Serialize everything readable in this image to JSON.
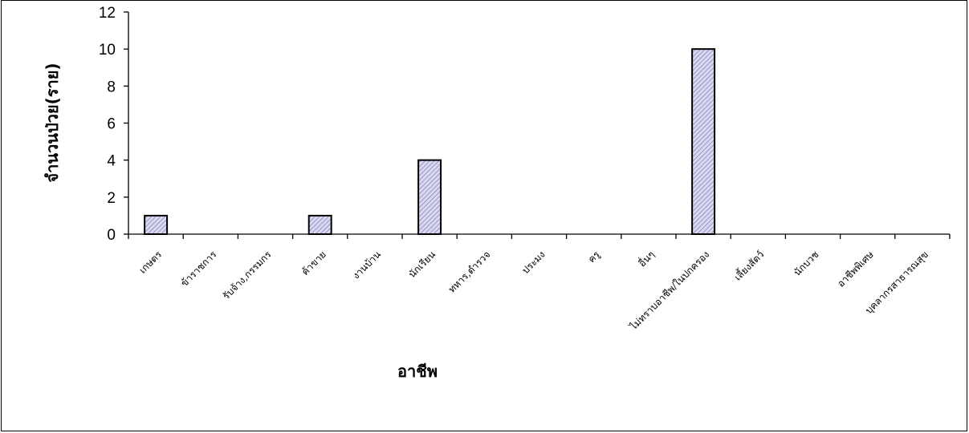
{
  "chart_data": {
    "type": "bar",
    "title": "",
    "xlabel": "อาชีพ",
    "ylabel": "จำนวนป่วย(ราย)",
    "ylim": [
      0,
      12
    ],
    "yticks": [
      0,
      2,
      4,
      6,
      8,
      10,
      12
    ],
    "grid": false,
    "legend": "none",
    "categories": [
      "เกษตร",
      "ข้าราชการ",
      "รับจ้าง,กรรมกร",
      "ค้าขาย",
      "งานบ้าน",
      "นักเรียน",
      "ทหาร,ตำรวจ",
      "ประมง",
      "ครู",
      "อื่นๆ",
      "ไม่ทราบอาชีพ/ในปกครอง",
      "เลี้ยงสัตว์",
      "นักบวช",
      "อาชีพพิเศษ",
      "บุคลากรสาธารณสุข"
    ],
    "values": [
      1,
      0,
      0,
      1,
      0,
      4,
      0,
      0,
      0,
      0,
      10,
      0,
      0,
      0,
      0
    ],
    "bar_color": "#d8d8f0",
    "hatch_color": "#7070a8"
  }
}
